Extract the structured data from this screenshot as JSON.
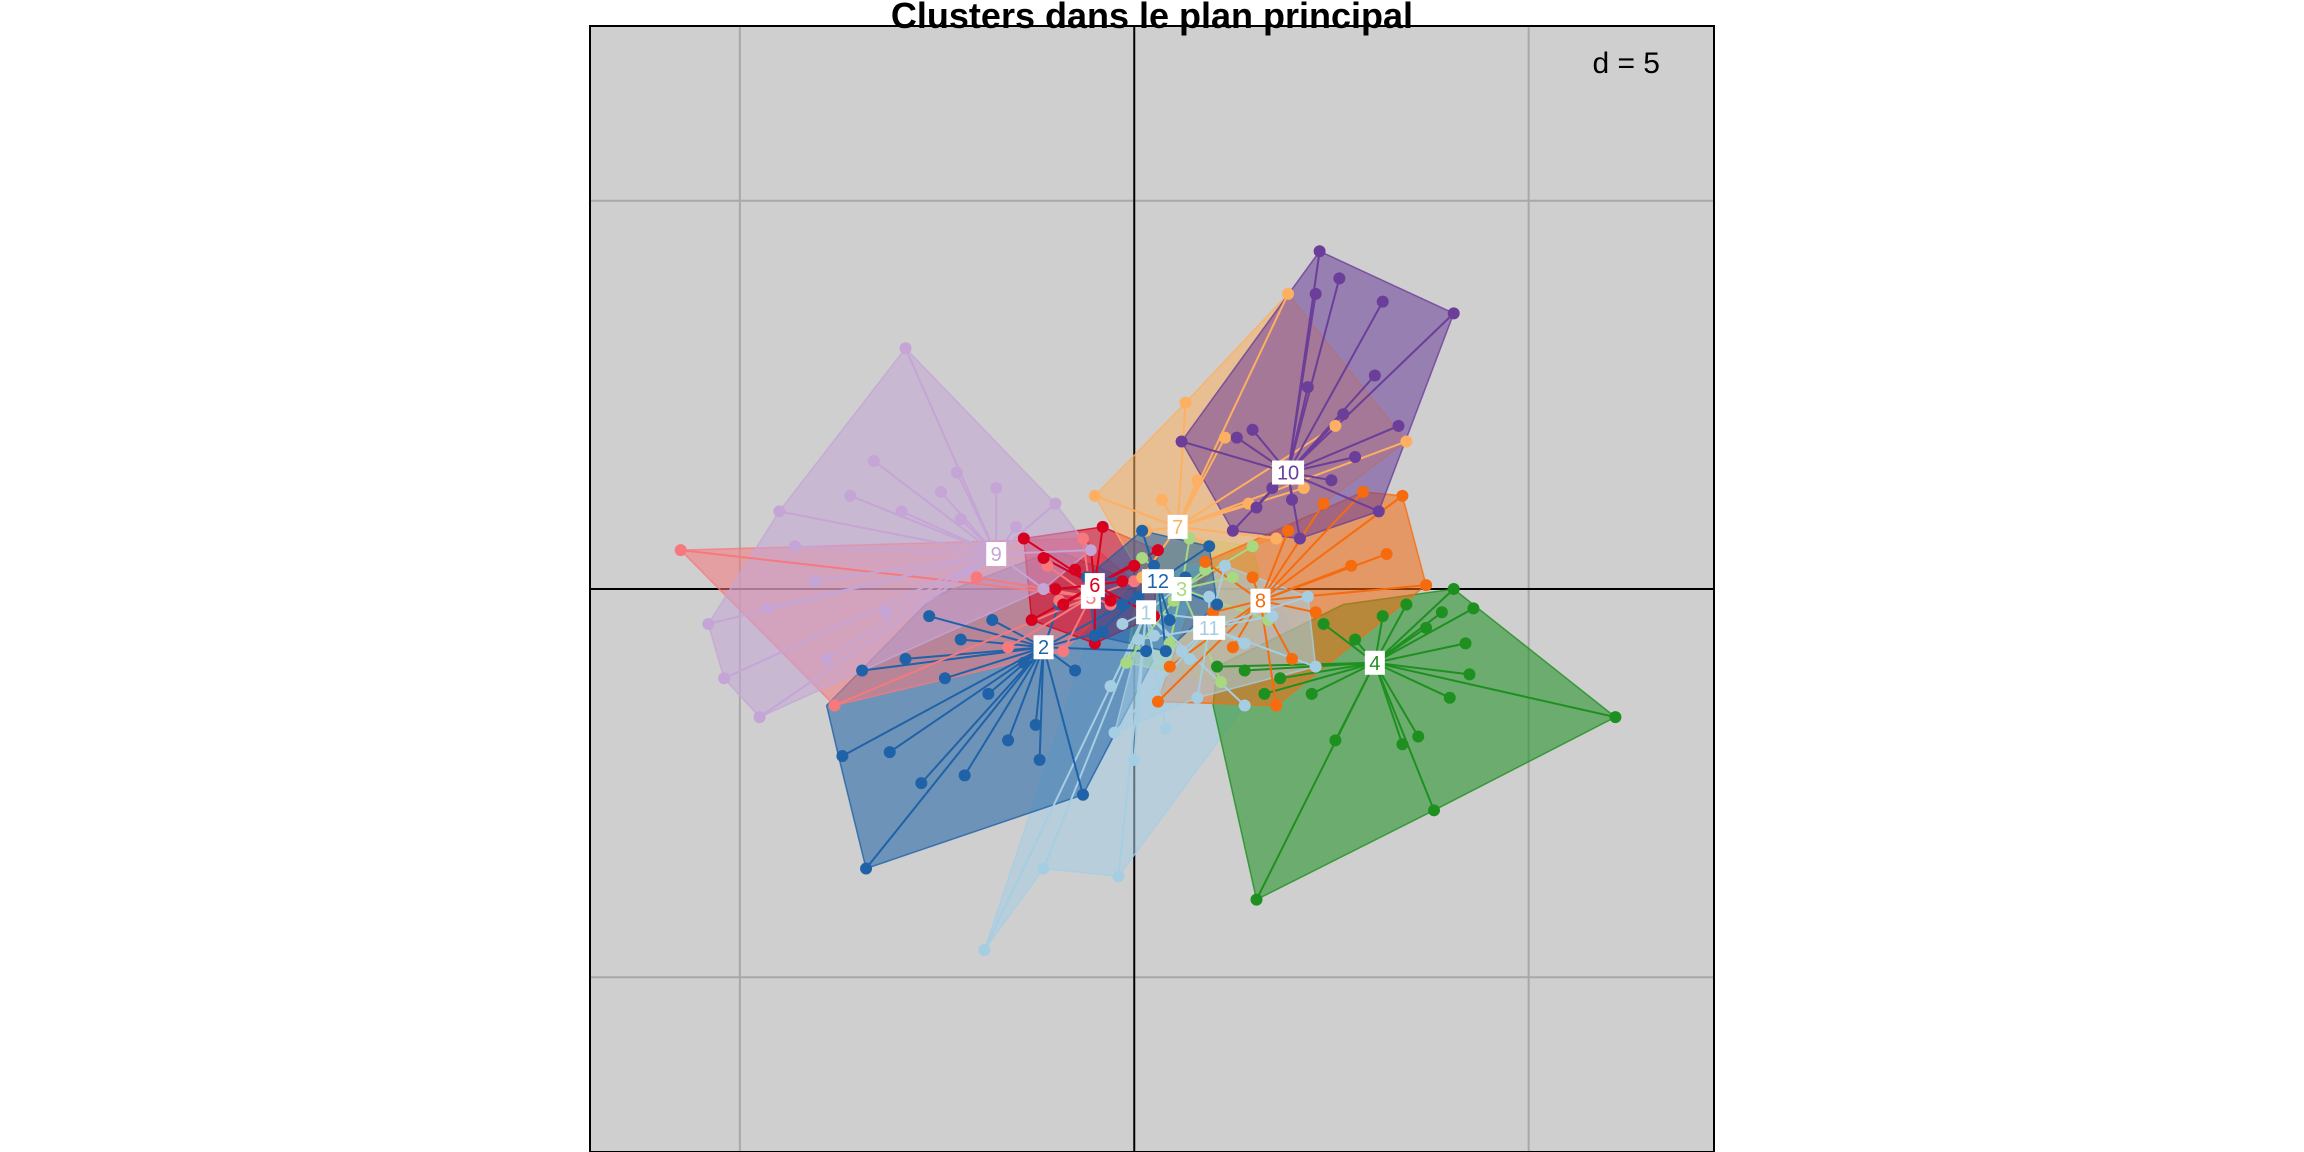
{
  "chart_data": {
    "type": "scatter",
    "title": "Clusters dans le plan principal",
    "scale_label": "d = 5",
    "grid": true,
    "xlim": [
      -13.8,
      14.7
    ],
    "ylim": [
      -14.5,
      14.5
    ],
    "grid_step": 10,
    "clusters": [
      {
        "name": "1",
        "color": "#A6CEE3",
        "center": [
          0.3,
          -0.6
        ],
        "hull": [
          [
            -3.8,
            -9.3
          ],
          [
            -2.3,
            -7.2
          ],
          [
            -0.4,
            -7.4
          ],
          [
            2.8,
            -3.0
          ],
          [
            4.2,
            -1.2
          ],
          [
            3.0,
            0.3
          ],
          [
            -0.2,
            0.6
          ],
          [
            -1.0,
            -0.8
          ]
        ],
        "points": [
          [
            -3.8,
            -9.3
          ],
          [
            -2.3,
            -7.2
          ],
          [
            -0.4,
            -7.4
          ],
          [
            2.8,
            -3.0
          ],
          [
            1.4,
            -1.8
          ],
          [
            0.8,
            -3.6
          ],
          [
            -0.6,
            -2.5
          ],
          [
            0.5,
            -1.2
          ],
          [
            1.2,
            0.1
          ],
          [
            -0.3,
            -0.9
          ],
          [
            2.0,
            -0.8
          ],
          [
            0.0,
            -4.4
          ]
        ]
      },
      {
        "name": "2",
        "color": "#1F62A8",
        "center": [
          -2.3,
          -1.5
        ],
        "hull": [
          [
            -6.8,
            -7.2
          ],
          [
            -1.3,
            -5.3
          ],
          [
            0.5,
            -1.8
          ],
          [
            0.2,
            0.1
          ],
          [
            -2.0,
            1.0
          ],
          [
            -5.1,
            -0.2
          ],
          [
            -7.8,
            -3.0
          ],
          [
            -7.5,
            -4.3
          ]
        ],
        "points": [
          [
            -6.8,
            -7.2
          ],
          [
            -5.4,
            -5.0
          ],
          [
            -4.3,
            -4.8
          ],
          [
            -7.4,
            -4.3
          ],
          [
            -6.2,
            -4.2
          ],
          [
            -3.2,
            -3.9
          ],
          [
            -2.5,
            -3.5
          ],
          [
            -1.3,
            -5.3
          ],
          [
            -4.8,
            -2.3
          ],
          [
            -6.9,
            -2.1
          ],
          [
            -5.8,
            -1.8
          ],
          [
            -3.7,
            -2.7
          ],
          [
            -1.5,
            -2.1
          ],
          [
            0.3,
            -1.6
          ],
          [
            -1.9,
            -0.4
          ],
          [
            -3.6,
            -0.8
          ],
          [
            -0.8,
            -1.1
          ],
          [
            0.1,
            -0.2
          ],
          [
            -4.4,
            -1.3
          ],
          [
            -2.8,
            -1.9
          ],
          [
            -5.2,
            -0.7
          ],
          [
            -2.4,
            -4.4
          ]
        ]
      },
      {
        "name": "3",
        "color": "#A8D882",
        "center": [
          1.2,
          0.0
        ],
        "hull": [
          [
            -0.2,
            -1.9
          ],
          [
            2.2,
            -2.4
          ],
          [
            3.4,
            -0.8
          ],
          [
            3.0,
            1.1
          ],
          [
            1.4,
            1.3
          ],
          [
            0.2,
            0.8
          ]
        ],
        "points": [
          [
            -0.2,
            -1.9
          ],
          [
            0.9,
            -1.4
          ],
          [
            2.2,
            -2.4
          ],
          [
            3.4,
            -0.8
          ],
          [
            2.5,
            0.3
          ],
          [
            3.0,
            1.1
          ],
          [
            1.4,
            1.3
          ],
          [
            0.2,
            0.8
          ],
          [
            1.0,
            -0.3
          ],
          [
            1.8,
            0.5
          ]
        ]
      },
      {
        "name": "4",
        "color": "#1E9020",
        "center": [
          6.1,
          -1.9
        ],
        "hull": [
          [
            3.1,
            -8.0
          ],
          [
            7.6,
            -5.7
          ],
          [
            12.2,
            -3.3
          ],
          [
            8.1,
            0.0
          ],
          [
            5.3,
            -0.4
          ],
          [
            2.1,
            -2.0
          ],
          [
            2.0,
            -3.0
          ]
        ],
        "points": [
          [
            3.1,
            -8.0
          ],
          [
            7.6,
            -5.7
          ],
          [
            12.2,
            -3.3
          ],
          [
            8.1,
            0.0
          ],
          [
            6.9,
            -0.4
          ],
          [
            7.8,
            -0.6
          ],
          [
            8.6,
            -0.5
          ],
          [
            4.5,
            -2.7
          ],
          [
            3.3,
            -2.7
          ],
          [
            2.8,
            -2.1
          ],
          [
            7.2,
            -3.8
          ],
          [
            8.0,
            -2.8
          ],
          [
            6.8,
            -4.0
          ],
          [
            5.1,
            -3.9
          ],
          [
            8.4,
            -1.4
          ],
          [
            3.7,
            -2.3
          ],
          [
            5.6,
            -1.3
          ],
          [
            7.4,
            -1.0
          ],
          [
            2.1,
            -2.0
          ],
          [
            4.8,
            -0.9
          ],
          [
            6.3,
            -0.7
          ],
          [
            8.5,
            -2.2
          ]
        ]
      },
      {
        "name": "5",
        "color": "#F6797E",
        "center": [
          -1.1,
          -0.2
        ],
        "hull": [
          [
            -11.5,
            1.0
          ],
          [
            -7.6,
            -3.0
          ],
          [
            -1.8,
            -1.6
          ],
          [
            0.0,
            0.2
          ],
          [
            -1.3,
            1.3
          ]
        ],
        "points": [
          [
            -11.5,
            1.0
          ],
          [
            -7.6,
            -3.0
          ],
          [
            -3.2,
            -1.5
          ],
          [
            -1.8,
            -1.6
          ],
          [
            -0.6,
            -0.4
          ],
          [
            0.0,
            0.2
          ],
          [
            -1.3,
            1.3
          ],
          [
            -2.2,
            0.6
          ],
          [
            -4.0,
            0.3
          ],
          [
            -1.9,
            -0.3
          ]
        ]
      },
      {
        "name": "6",
        "color": "#D7001E",
        "center": [
          -1.0,
          0.1
        ],
        "hull": [
          [
            -2.8,
            1.3
          ],
          [
            -0.8,
            1.6
          ],
          [
            0.6,
            1.0
          ],
          [
            0.5,
            -0.7
          ],
          [
            -1.0,
            -1.4
          ],
          [
            -2.6,
            -0.8
          ]
        ],
        "points": [
          [
            -2.8,
            1.3
          ],
          [
            -0.8,
            1.6
          ],
          [
            0.6,
            1.0
          ],
          [
            0.5,
            -0.7
          ],
          [
            -1.0,
            -1.4
          ],
          [
            -2.6,
            -0.8
          ],
          [
            -1.5,
            0.5
          ],
          [
            -0.3,
            0.2
          ],
          [
            -2.0,
            0.0
          ],
          [
            -1.1,
            1.0
          ],
          [
            -0.6,
            -0.3
          ],
          [
            -1.8,
            -0.4
          ],
          [
            0.0,
            0.6
          ],
          [
            -2.3,
            0.8
          ]
        ]
      },
      {
        "name": "7",
        "color": "#FDB062",
        "center": [
          1.1,
          1.6
        ],
        "hull": [
          [
            -1.0,
            2.4
          ],
          [
            1.3,
            4.8
          ],
          [
            3.9,
            7.6
          ],
          [
            6.9,
            3.8
          ],
          [
            3.6,
            1.3
          ],
          [
            0.2,
            0.3
          ]
        ],
        "points": [
          [
            -1.0,
            2.4
          ],
          [
            1.3,
            4.8
          ],
          [
            3.9,
            7.6
          ],
          [
            6.9,
            3.8
          ],
          [
            3.6,
            1.3
          ],
          [
            0.2,
            0.3
          ],
          [
            2.3,
            3.9
          ],
          [
            1.6,
            2.8
          ],
          [
            0.7,
            2.3
          ],
          [
            2.9,
            2.2
          ],
          [
            4.3,
            2.6
          ],
          [
            5.1,
            4.2
          ],
          [
            0.3,
            1.5
          ],
          [
            1.9,
            1.1
          ]
        ]
      },
      {
        "name": "8",
        "color": "#F66B0E",
        "center": [
          3.2,
          -0.3
        ],
        "hull": [
          [
            0.6,
            -2.9
          ],
          [
            3.6,
            -3.0
          ],
          [
            7.4,
            0.1
          ],
          [
            6.8,
            2.4
          ],
          [
            5.8,
            2.5
          ],
          [
            1.8,
            0.7
          ]
        ],
        "points": [
          [
            0.6,
            -2.9
          ],
          [
            0.9,
            -2.0
          ],
          [
            3.6,
            -3.0
          ],
          [
            7.4,
            0.1
          ],
          [
            6.4,
            0.9
          ],
          [
            6.8,
            2.4
          ],
          [
            5.8,
            2.5
          ],
          [
            4.8,
            2.2
          ],
          [
            3.9,
            1.5
          ],
          [
            1.8,
            0.7
          ],
          [
            2.5,
            -1.5
          ],
          [
            4.6,
            -0.6
          ],
          [
            5.5,
            0.6
          ],
          [
            3.0,
            0.3
          ],
          [
            2.0,
            -0.6
          ],
          [
            4.0,
            -1.8
          ]
        ]
      },
      {
        "name": "9",
        "color": "#C5A5D6",
        "center": [
          -3.5,
          0.9
        ],
        "hull": [
          [
            -9.5,
            -3.3
          ],
          [
            -10.4,
            -2.3
          ],
          [
            -10.8,
            -0.9
          ],
          [
            -9.0,
            2.0
          ],
          [
            -5.8,
            6.2
          ],
          [
            -2.0,
            2.2
          ],
          [
            -1.1,
            1.0
          ],
          [
            -2.3,
            0.0
          ]
        ],
        "points": [
          [
            -5.8,
            6.2
          ],
          [
            -9.5,
            -3.3
          ],
          [
            -10.4,
            -2.3
          ],
          [
            -10.8,
            -0.9
          ],
          [
            -9.0,
            2.0
          ],
          [
            -8.6,
            1.1
          ],
          [
            -6.6,
            3.3
          ],
          [
            -4.5,
            3.0
          ],
          [
            -3.5,
            2.6
          ],
          [
            -5.9,
            2.0
          ],
          [
            -7.2,
            2.4
          ],
          [
            -8.1,
            0.2
          ],
          [
            -9.3,
            -0.5
          ],
          [
            -6.3,
            -0.6
          ],
          [
            -4.4,
            1.8
          ],
          [
            -3.0,
            1.6
          ],
          [
            -2.0,
            2.2
          ],
          [
            -1.1,
            1.0
          ],
          [
            -2.3,
            0.0
          ],
          [
            -4.9,
            2.5
          ],
          [
            -7.8,
            -1.8
          ]
        ]
      },
      {
        "name": "10",
        "color": "#6B3E99",
        "center": [
          3.9,
          3.0
        ],
        "hull": [
          [
            2.5,
            1.5
          ],
          [
            1.2,
            3.8
          ],
          [
            4.7,
            8.7
          ],
          [
            8.1,
            7.1
          ],
          [
            6.2,
            2.0
          ],
          [
            4.2,
            1.3
          ]
        ],
        "points": [
          [
            4.7,
            8.7
          ],
          [
            8.1,
            7.1
          ],
          [
            6.3,
            7.4
          ],
          [
            5.2,
            8.0
          ],
          [
            4.6,
            7.6
          ],
          [
            6.1,
            5.5
          ],
          [
            5.3,
            4.5
          ],
          [
            6.7,
            4.2
          ],
          [
            3.0,
            4.1
          ],
          [
            2.6,
            3.9
          ],
          [
            1.2,
            3.8
          ],
          [
            4.4,
            5.2
          ],
          [
            5.0,
            2.8
          ],
          [
            6.2,
            2.0
          ],
          [
            3.5,
            2.6
          ],
          [
            2.5,
            1.5
          ],
          [
            4.2,
            1.3
          ],
          [
            5.6,
            3.4
          ],
          [
            3.1,
            2.1
          ],
          [
            4.0,
            2.3
          ]
        ]
      },
      {
        "name": "11",
        "color": "#A6CEE3",
        "center": [
          1.9,
          -1.0
        ],
        "hull": [
          [
            -0.5,
            -3.7
          ],
          [
            1.6,
            -2.8
          ],
          [
            4.6,
            -2.0
          ],
          [
            4.4,
            -0.2
          ],
          [
            2.3,
            0.6
          ],
          [
            0.1,
            -1.3
          ]
        ],
        "points": [
          [
            -0.5,
            -3.7
          ],
          [
            1.6,
            -2.8
          ],
          [
            4.6,
            -2.0
          ],
          [
            4.4,
            -0.2
          ],
          [
            2.3,
            0.6
          ],
          [
            0.1,
            -1.3
          ],
          [
            1.2,
            -1.6
          ],
          [
            2.8,
            -1.4
          ],
          [
            3.5,
            -0.7
          ],
          [
            1.9,
            -0.2
          ]
        ]
      },
      {
        "name": "12",
        "color": "#1F62A8",
        "center": [
          0.6,
          0.2
        ],
        "hull": [
          [
            -1.0,
            -1.2
          ],
          [
            0.8,
            -1.6
          ],
          [
            2.1,
            -0.4
          ],
          [
            1.9,
            1.1
          ],
          [
            0.2,
            1.5
          ],
          [
            -1.2,
            0.3
          ]
        ],
        "points": [
          [
            -1.0,
            -1.2
          ],
          [
            0.8,
            -1.6
          ],
          [
            2.1,
            -0.4
          ],
          [
            1.9,
            1.1
          ],
          [
            0.2,
            1.5
          ],
          [
            -1.2,
            0.3
          ],
          [
            0.5,
            0.6
          ],
          [
            -0.3,
            -0.4
          ],
          [
            1.3,
            0.3
          ],
          [
            0.9,
            -0.8
          ]
        ]
      }
    ]
  }
}
